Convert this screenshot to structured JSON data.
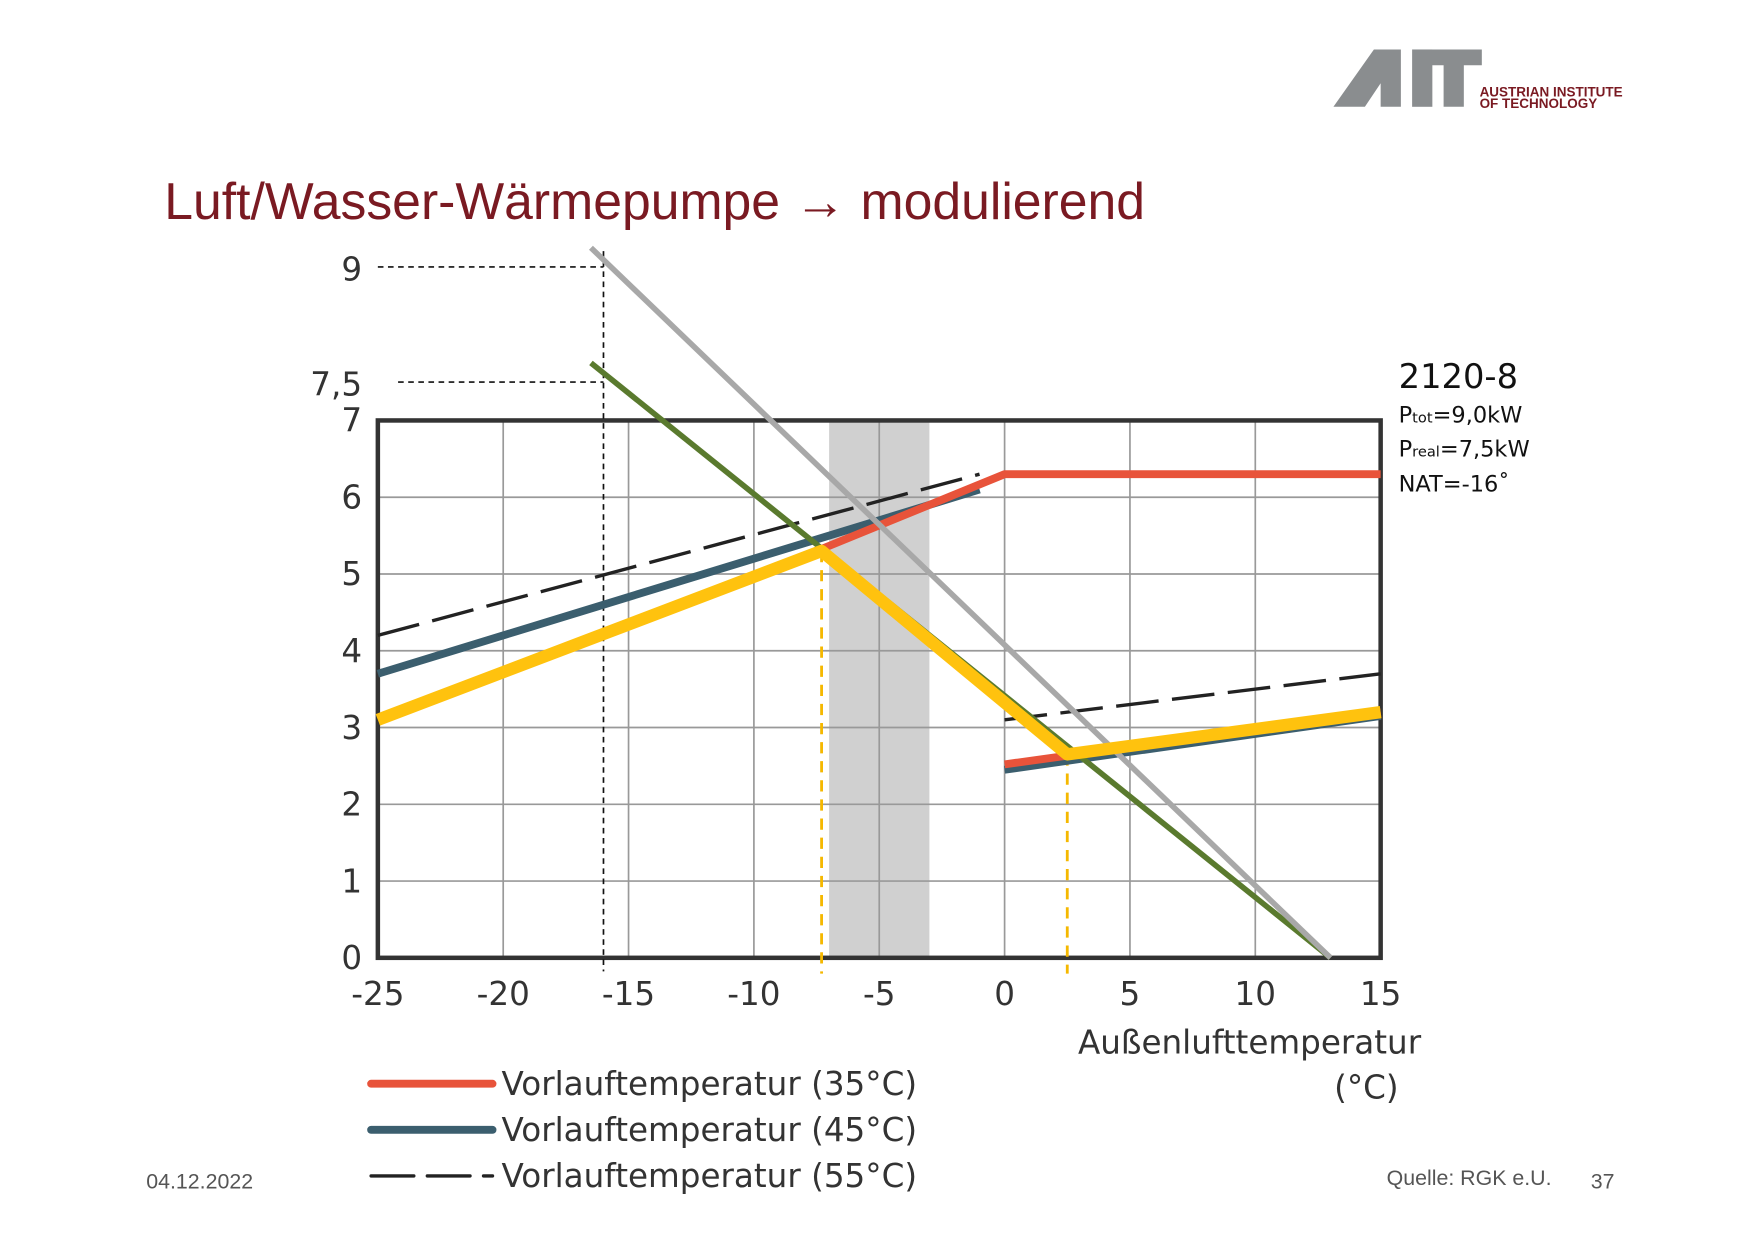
{
  "header": {
    "logo_line1": "AUSTRIAN INSTITUTE",
    "logo_line2": "OF TECHNOLOGY"
  },
  "title": "Luft/Wasser-Wärmepumpe → modulierend",
  "chart_data": {
    "type": "line",
    "xlim": [
      -25,
      15
    ],
    "ylim": [
      0,
      7
    ],
    "xticks": [
      -25,
      -20,
      -15,
      -10,
      -5,
      0,
      5,
      10,
      15
    ],
    "yticks": [
      0,
      1,
      2,
      3,
      4,
      5,
      6,
      7
    ],
    "grid": true,
    "xlabel": [
      "Außenlufttemperatur",
      "(°C)"
    ],
    "span": {
      "x": [
        -7,
        -3
      ],
      "color": "#d0d0d0"
    },
    "y_marks": [
      {
        "value": 9,
        "label": "9"
      },
      {
        "value": 7.5,
        "label": "7,5"
      }
    ],
    "x_mark": {
      "value": -16,
      "color": "#111"
    },
    "vlines": [
      {
        "x": -7.3,
        "top": 5.3,
        "color": "#f5b800"
      },
      {
        "x": 2.5,
        "top": 2.65,
        "color": "#f5b800"
      }
    ],
    "series": [
      {
        "name": "Vorlauftemperatur (35°C)",
        "color": "#e8533a",
        "width": 7,
        "x": [
          -7.5,
          0,
          15,
          15,
          0,
          15
        ],
        "values": [
          5.3,
          6.3,
          6.3,
          null,
          2.52,
          3.2
        ]
      },
      {
        "name": "Vorlauftemperatur (45°C)",
        "color": "#3b5e6e",
        "width": 7,
        "x": [
          -25,
          -1,
          0,
          0,
          15
        ],
        "values": [
          3.7,
          6.1,
          null,
          2.45,
          3.15
        ]
      },
      {
        "name": "Vorlauftemperatur (55°C)",
        "color": "#222222",
        "width": 3,
        "dash": true,
        "x": [
          -25,
          -1,
          0,
          0,
          15
        ],
        "values": [
          4.2,
          6.3,
          null,
          3.1,
          3.7
        ]
      },
      {
        "color": "#ffc20e",
        "width": 11,
        "x": [
          -25,
          -7.3,
          2.5,
          15
        ],
        "values": [
          3.1,
          5.3,
          2.65,
          3.2
        ]
      },
      {
        "color": "#5a7a2e",
        "width": 5,
        "x": [
          -16.5,
          13
        ],
        "values": [
          7.75,
          0
        ]
      },
      {
        "color": "#a8a8a8",
        "width": 5,
        "x": [
          -16.5,
          13
        ],
        "values": [
          9.25,
          0
        ]
      }
    ]
  },
  "info": {
    "model": "2120-8",
    "ptot": [
      "P",
      "tot",
      "=9,0kW"
    ],
    "preal": [
      "P",
      "real",
      "=7,5kW"
    ],
    "nat": "NAT=-16˚"
  },
  "footer": {
    "date": "04.12.2022",
    "source": "Quelle: RGK e.U.",
    "page": "37"
  }
}
